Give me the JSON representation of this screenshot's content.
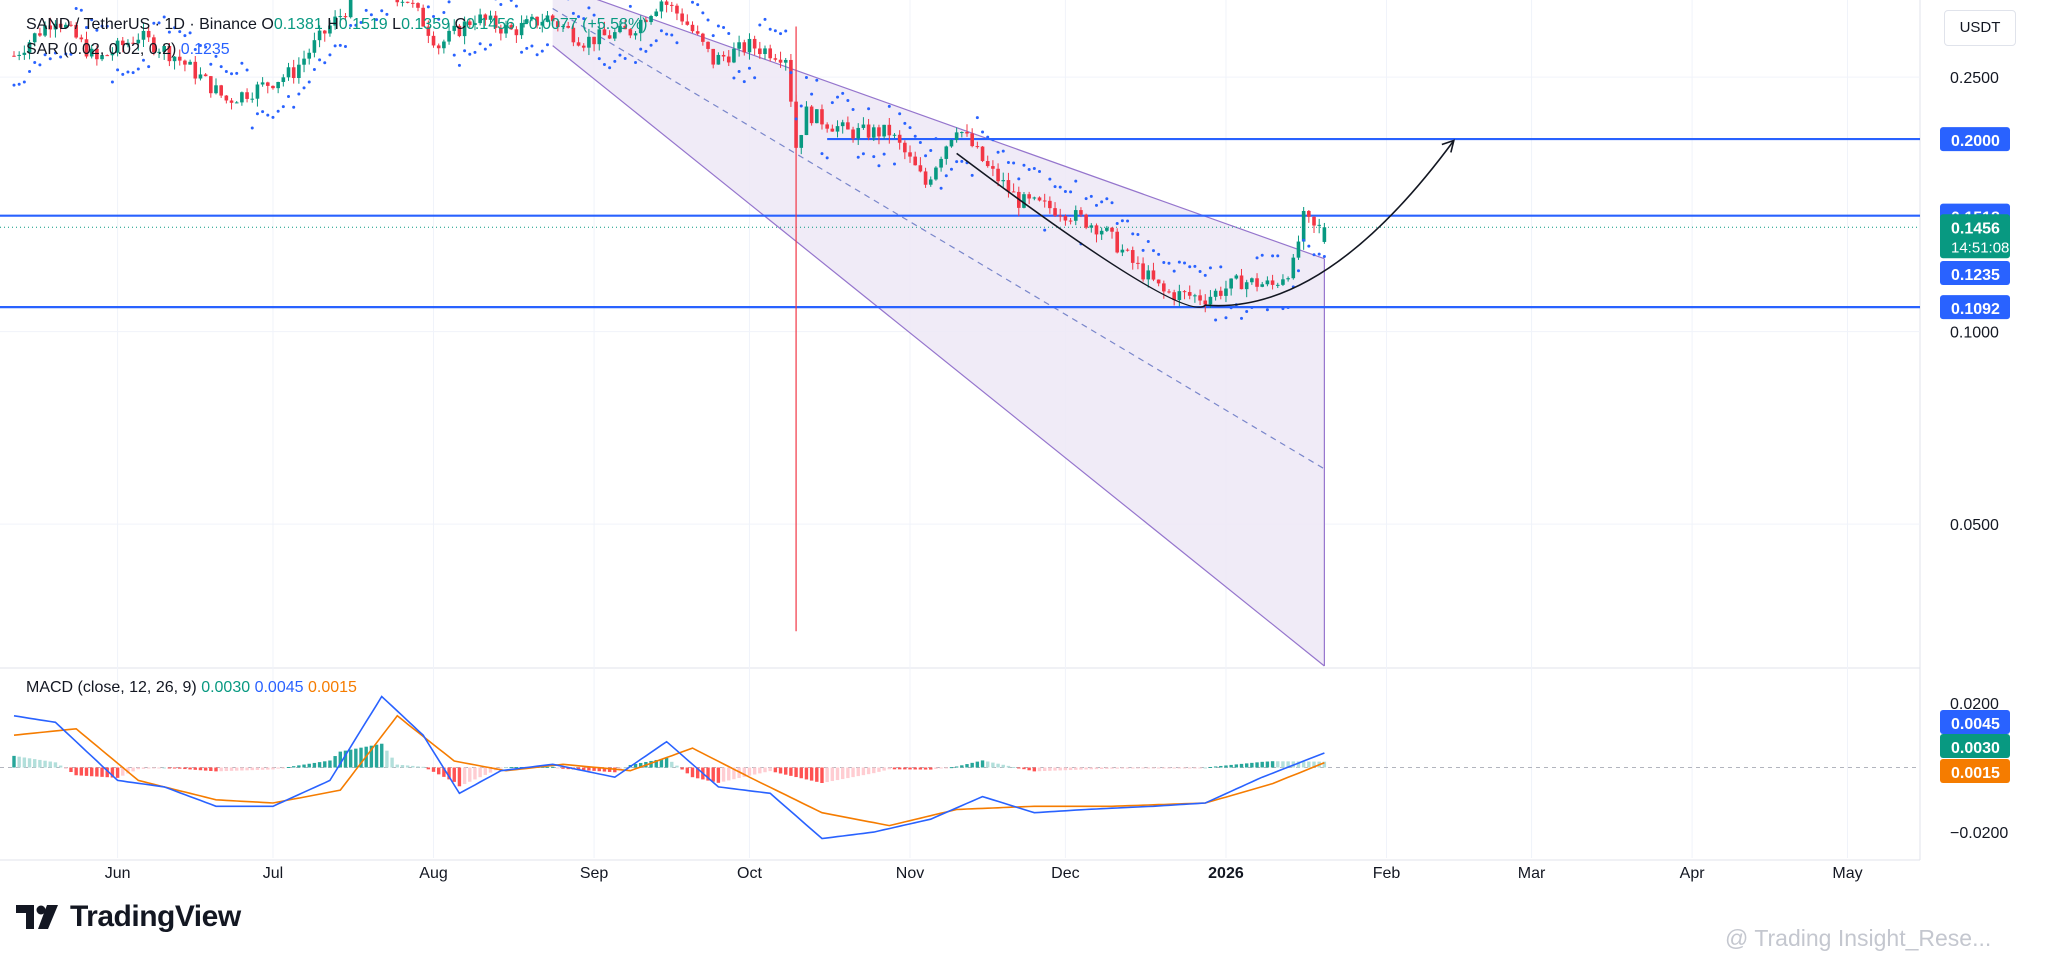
{
  "header": {
    "symbol_line": "SAND / TetherUS · 1D · Binance",
    "ohlc": [
      {
        "label": "O",
        "value": "0.1381"
      },
      {
        "label": "H",
        "value": "0.1519"
      },
      {
        "label": "L",
        "value": "0.1359"
      },
      {
        "label": "C",
        "value": "0.1456"
      }
    ],
    "change": "+0.0077 (+5.58%)",
    "sar_label": "SAR (0.02, 0.02, 0.2)",
    "sar_value": "0.1235",
    "currency_button": "USDT"
  },
  "macd_legend": {
    "label": "MACD (close, 12, 26, 9)",
    "v1": "0.0030",
    "v2": "0.0045",
    "v3": "0.0015"
  },
  "branding": {
    "logo_text": "TradingView",
    "watermark": "@ Trading Insight_Rese..."
  },
  "colors": {
    "up": "#089981",
    "down": "#f23645",
    "level_line": "#2962ff",
    "channel_fill": "#ede7f6",
    "channel_border": "#9575cd",
    "macd_line": "#2962ff",
    "signal_line": "#f57c00",
    "hist_up_strong": "#26a69a",
    "hist_up_weak": "#b2dfdb",
    "hist_down_strong": "#ff5252",
    "hist_down_weak": "#ffcdd2"
  },
  "chart_data": [
    {
      "type": "candlestick",
      "title": "SAND / TetherUS · 1D · Binance",
      "x_ticks": [
        {
          "label": "Jun",
          "date": "2025-06-01"
        },
        {
          "label": "Jul",
          "date": "2025-07-01"
        },
        {
          "label": "Aug",
          "date": "2025-08-01"
        },
        {
          "label": "Sep",
          "date": "2025-09-01"
        },
        {
          "label": "Oct",
          "date": "2025-10-01"
        },
        {
          "label": "Nov",
          "date": "2025-11-01"
        },
        {
          "label": "Dec",
          "date": "2025-12-01"
        },
        {
          "label": "2026",
          "date": "2026-01-01"
        },
        {
          "label": "Feb",
          "date": "2026-02-01"
        },
        {
          "label": "Mar",
          "date": "2026-03-01"
        },
        {
          "label": "Apr",
          "date": "2026-04-01"
        },
        {
          "label": "May",
          "date": "2026-05-01"
        }
      ],
      "x_range": [
        "2025-05-12",
        "2026-05-15"
      ],
      "y_ticks": [
        "0.2500",
        "0.1000",
        "0.0500"
      ],
      "y_scale": "log",
      "y_range": [
        0.03,
        0.33
      ],
      "price_levels": [
        {
          "label": "0.2000",
          "value": 0.2,
          "line": true,
          "start_date": "2025-10-16"
        },
        {
          "label": "0.1518",
          "value": 0.1518,
          "line": true
        },
        {
          "label": "0.1092",
          "value": 0.1092,
          "line": true
        }
      ],
      "current_price": {
        "label": "0.1456",
        "value": 0.1456,
        "countdown": "14:51:08"
      },
      "sar_current": {
        "label": "0.1235",
        "value": 0.1235
      },
      "candle_anchors": [
        [
          "2025-05-12",
          0.27
        ],
        [
          "2025-05-20",
          0.31
        ],
        [
          "2025-05-28",
          0.265
        ],
        [
          "2025-06-05",
          0.29
        ],
        [
          "2025-06-12",
          0.27
        ],
        [
          "2025-06-22",
          0.23
        ],
        [
          "2025-06-28",
          0.24
        ],
        [
          "2025-07-05",
          0.255
        ],
        [
          "2025-07-12",
          0.3
        ],
        [
          "2025-07-20",
          0.35
        ],
        [
          "2025-07-27",
          0.33
        ],
        [
          "2025-08-02",
          0.28
        ],
        [
          "2025-08-09",
          0.31
        ],
        [
          "2025-08-16",
          0.295
        ],
        [
          "2025-08-23",
          0.31
        ],
        [
          "2025-08-30",
          0.285
        ],
        [
          "2025-09-08",
          0.295
        ],
        [
          "2025-09-14",
          0.33
        ],
        [
          "2025-09-18",
          0.31
        ],
        [
          "2025-09-24",
          0.265
        ],
        [
          "2025-10-01",
          0.28
        ],
        [
          "2025-10-08",
          0.27
        ],
        [
          "2025-10-10",
          0.195
        ],
        [
          "2025-10-12",
          0.22
        ],
        [
          "2025-10-20",
          0.205
        ],
        [
          "2025-10-28",
          0.205
        ],
        [
          "2025-11-04",
          0.17
        ],
        [
          "2025-11-10",
          0.21
        ],
        [
          "2025-11-16",
          0.18
        ],
        [
          "2025-11-22",
          0.16
        ],
        [
          "2025-11-30",
          0.155
        ],
        [
          "2025-12-08",
          0.145
        ],
        [
          "2025-12-14",
          0.128
        ],
        [
          "2025-12-20",
          0.115
        ],
        [
          "2025-12-28",
          0.113
        ],
        [
          "2026-01-04",
          0.12
        ],
        [
          "2026-01-10",
          0.118
        ],
        [
          "2026-01-14",
          0.127
        ],
        [
          "2026-01-16",
          0.15
        ],
        [
          "2026-01-18",
          0.145
        ],
        [
          "2026-01-20",
          0.1456
        ]
      ],
      "channel": {
        "upper": [
          [
            "2025-08-24",
            0.35
          ],
          [
            "2026-01-20",
            0.13
          ]
        ],
        "middle": [
          [
            "2025-08-24",
            0.32
          ],
          [
            "2026-01-20",
            0.061
          ]
        ],
        "lower": [
          [
            "2025-08-24",
            0.28
          ],
          [
            "2026-01-20",
            0.03
          ]
        ]
      },
      "projection_curve": [
        [
          "2025-11-10",
          0.19
        ],
        [
          "2025-12-28",
          0.11
        ],
        [
          "2026-02-14",
          0.199
        ]
      ]
    },
    {
      "type": "macd",
      "title": "MACD (close, 12, 26, 9)",
      "y_ticks": [
        "0.0200",
        "−0.0200"
      ],
      "y_range": [
        -0.024,
        0.024
      ],
      "current_values": [
        {
          "label": "0.0045",
          "value": 0.0045,
          "series": "macd"
        },
        {
          "label": "0.0030",
          "value": 0.003,
          "series": "histogram"
        },
        {
          "label": "0.0015",
          "value": 0.0015,
          "series": "signal"
        }
      ],
      "macd_anchors": [
        [
          "2025-05-12",
          0.016
        ],
        [
          "2025-05-20",
          0.014
        ],
        [
          "2025-06-01",
          -0.004
        ],
        [
          "2025-06-10",
          -0.006
        ],
        [
          "2025-06-20",
          -0.012
        ],
        [
          "2025-07-01",
          -0.012
        ],
        [
          "2025-07-12",
          -0.004
        ],
        [
          "2025-07-22",
          0.022
        ],
        [
          "2025-07-30",
          0.01
        ],
        [
          "2025-08-06",
          -0.008
        ],
        [
          "2025-08-14",
          -0.001
        ],
        [
          "2025-08-24",
          0.001
        ],
        [
          "2025-09-05",
          -0.003
        ],
        [
          "2025-09-15",
          0.008
        ],
        [
          "2025-09-25",
          -0.006
        ],
        [
          "2025-10-05",
          -0.008
        ],
        [
          "2025-10-15",
          -0.022
        ],
        [
          "2025-10-25",
          -0.02
        ],
        [
          "2025-11-05",
          -0.016
        ],
        [
          "2025-11-15",
          -0.009
        ],
        [
          "2025-11-25",
          -0.014
        ],
        [
          "2025-12-05",
          -0.013
        ],
        [
          "2025-12-18",
          -0.012
        ],
        [
          "2025-12-28",
          -0.011
        ],
        [
          "2026-01-08",
          -0.003
        ],
        [
          "2026-01-20",
          0.0045
        ]
      ],
      "signal_anchors": [
        [
          "2025-05-12",
          0.01
        ],
        [
          "2025-05-24",
          0.012
        ],
        [
          "2025-06-05",
          -0.004
        ],
        [
          "2025-06-20",
          -0.01
        ],
        [
          "2025-07-01",
          -0.011
        ],
        [
          "2025-07-14",
          -0.007
        ],
        [
          "2025-07-25",
          0.016
        ],
        [
          "2025-08-05",
          0.002
        ],
        [
          "2025-08-15",
          -0.001
        ],
        [
          "2025-08-26",
          0.001
        ],
        [
          "2025-09-08",
          -0.001
        ],
        [
          "2025-09-20",
          0.006
        ],
        [
          "2025-10-01",
          -0.003
        ],
        [
          "2025-10-15",
          -0.014
        ],
        [
          "2025-10-28",
          -0.018
        ],
        [
          "2025-11-10",
          -0.013
        ],
        [
          "2025-11-25",
          -0.012
        ],
        [
          "2025-12-10",
          -0.012
        ],
        [
          "2025-12-28",
          -0.011
        ],
        [
          "2026-01-10",
          -0.005
        ],
        [
          "2026-01-20",
          0.0015
        ]
      ]
    }
  ]
}
